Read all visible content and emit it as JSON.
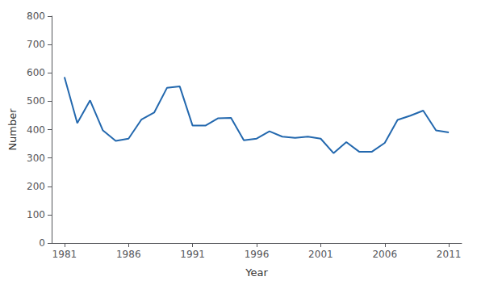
{
  "chart_data": {
    "type": "line",
    "x": [
      1981,
      1982,
      1983,
      1984,
      1985,
      1986,
      1987,
      1988,
      1989,
      1990,
      1991,
      1992,
      1993,
      1994,
      1995,
      1996,
      1997,
      1998,
      1999,
      2000,
      2001,
      2002,
      2003,
      2004,
      2005,
      2006,
      2007,
      2008,
      2009,
      2010,
      2011
    ],
    "values": [
      585,
      423,
      503,
      397,
      360,
      368,
      435,
      460,
      547,
      552,
      414,
      414,
      440,
      441,
      362,
      368,
      394,
      375,
      371,
      375,
      368,
      317,
      356,
      322,
      322,
      353,
      434,
      449,
      467,
      397,
      390
    ],
    "color": "#2368ae",
    "xlabel": "Year",
    "ylabel": "Number",
    "xlim": [
      1980,
      2012
    ],
    "xticks": [
      1981,
      1986,
      1991,
      1996,
      2001,
      2006,
      2011
    ],
    "ylim": [
      0,
      800
    ],
    "yticks": [
      0,
      100,
      200,
      300,
      400,
      500,
      600,
      700,
      800
    ],
    "grid": false
  }
}
